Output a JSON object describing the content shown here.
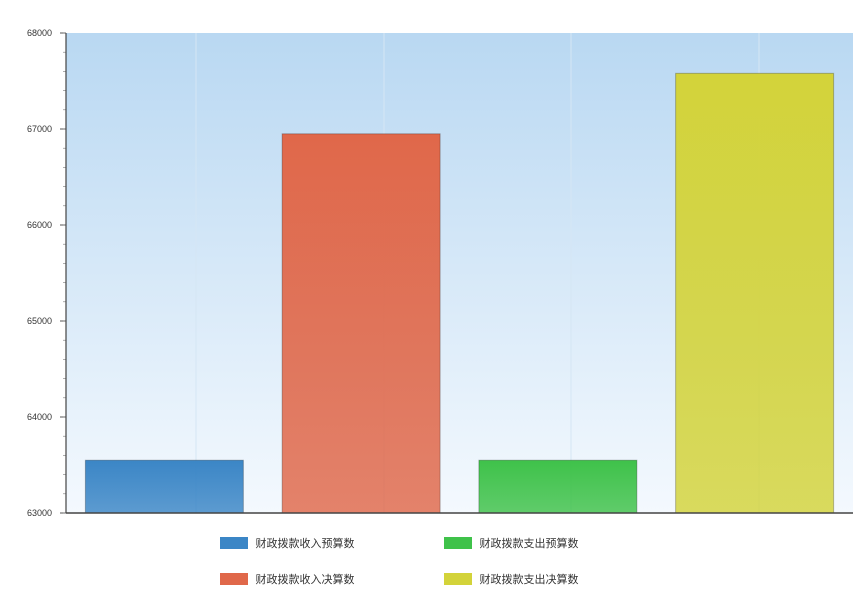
{
  "chart_data": {
    "type": "bar",
    "ylim": [
      63000,
      68000
    ],
    "yticks": [
      "63000",
      "64000",
      "65000",
      "66000",
      "67000",
      "68000"
    ],
    "grid": true,
    "legend_position": "bottom",
    "series": [
      {
        "name": "财政拨款收入预算数",
        "value": 63550,
        "color": "#3b86c6"
      },
      {
        "name": "财政拨款收入决算数",
        "value": 66950,
        "color": "#e0684a"
      },
      {
        "name": "财政拨款支出预算数",
        "value": 63550,
        "color": "#3fc24a"
      },
      {
        "name": "财政拨款支出决算数",
        "value": 67580,
        "color": "#d3d33a"
      }
    ]
  }
}
